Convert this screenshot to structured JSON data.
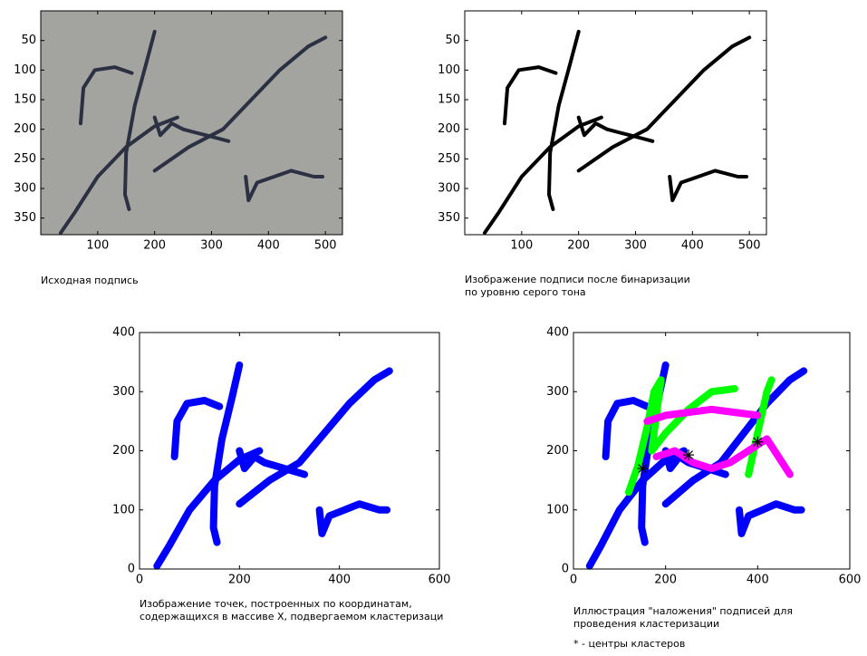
{
  "chart_data": [
    {
      "type": "image",
      "caption": [
        "Исходная  подпись"
      ],
      "background": "#a3a49f",
      "y_reversed": true,
      "xlim": [
        0,
        530
      ],
      "ylim": [
        0,
        378
      ],
      "xticks": [
        100,
        200,
        300,
        400,
        500
      ],
      "yticks": [
        50,
        100,
        150,
        200,
        250,
        300,
        350
      ],
      "series": [
        {
          "color": "#2b3042",
          "x": [
            70,
            75,
            95,
            130,
            160
          ],
          "y": [
            190,
            130,
            100,
            95,
            105
          ]
        },
        {
          "color": "#2b3042",
          "x": [
            200,
            185,
            165,
            150,
            148,
            155
          ],
          "y": [
            35,
            90,
            160,
            240,
            310,
            335
          ]
        },
        {
          "color": "#2b3042",
          "x": [
            35,
            60,
            100,
            150,
            200,
            240
          ],
          "y": [
            375,
            340,
            280,
            230,
            195,
            180
          ]
        },
        {
          "color": "#2b3042",
          "x": [
            200,
            210,
            230,
            250,
            270,
            290,
            310,
            330
          ],
          "y": [
            180,
            210,
            190,
            200,
            205,
            210,
            215,
            220
          ]
        },
        {
          "color": "#2b3042",
          "x": [
            200,
            260,
            320,
            370,
            420,
            470,
            500
          ],
          "y": [
            270,
            230,
            200,
            150,
            100,
            60,
            45
          ]
        },
        {
          "color": "#2b3042",
          "x": [
            360,
            365,
            380,
            410,
            440,
            480,
            495
          ],
          "y": [
            280,
            320,
            290,
            280,
            270,
            280,
            280
          ]
        }
      ]
    },
    {
      "type": "image",
      "caption": [
        "Изображение подписи после бинаризации",
        "по уровню серого тона"
      ],
      "background": "#ffffff",
      "y_reversed": true,
      "xlim": [
        0,
        530
      ],
      "ylim": [
        0,
        378
      ],
      "xticks": [
        100,
        200,
        300,
        400,
        500
      ],
      "yticks": [
        50,
        100,
        150,
        200,
        250,
        300,
        350
      ],
      "series": [
        {
          "color": "#000000",
          "x": [
            70,
            75,
            95,
            130,
            160
          ],
          "y": [
            190,
            130,
            100,
            95,
            105
          ]
        },
        {
          "color": "#000000",
          "x": [
            200,
            185,
            165,
            150,
            148,
            155
          ],
          "y": [
            35,
            90,
            160,
            240,
            310,
            335
          ]
        },
        {
          "color": "#000000",
          "x": [
            35,
            60,
            100,
            150,
            200,
            240
          ],
          "y": [
            375,
            340,
            280,
            230,
            195,
            180
          ]
        },
        {
          "color": "#000000",
          "x": [
            200,
            210,
            230,
            250,
            270,
            290,
            310,
            330
          ],
          "y": [
            180,
            210,
            190,
            200,
            205,
            210,
            215,
            220
          ]
        },
        {
          "color": "#000000",
          "x": [
            200,
            260,
            320,
            370,
            420,
            470,
            500
          ],
          "y": [
            270,
            230,
            200,
            150,
            100,
            60,
            45
          ]
        },
        {
          "color": "#000000",
          "x": [
            360,
            365,
            380,
            410,
            440,
            480,
            495
          ],
          "y": [
            280,
            320,
            290,
            280,
            270,
            280,
            280
          ]
        }
      ]
    },
    {
      "type": "scatter",
      "caption": [
        "Изображение точек, построенных по координатам,",
        "содержащихся в массиве X, подвергаемом кластеризаци"
      ],
      "background": "#ffffff",
      "xlim": [
        0,
        600
      ],
      "ylim": [
        0,
        400
      ],
      "xticks": [
        0,
        200,
        400,
        600
      ],
      "yticks": [
        0,
        100,
        200,
        300,
        400
      ],
      "series": [
        {
          "color": "#0000ff",
          "x": [
            70,
            75,
            95,
            130,
            160
          ],
          "y": [
            190,
            250,
            280,
            285,
            275
          ]
        },
        {
          "color": "#0000ff",
          "x": [
            200,
            185,
            165,
            150,
            148,
            155
          ],
          "y": [
            345,
            290,
            220,
            140,
            70,
            45
          ]
        },
        {
          "color": "#0000ff",
          "x": [
            35,
            60,
            100,
            150,
            200,
            240
          ],
          "y": [
            5,
            40,
            100,
            150,
            185,
            200
          ]
        },
        {
          "color": "#0000ff",
          "x": [
            200,
            210,
            230,
            250,
            270,
            290,
            310,
            330
          ],
          "y": [
            200,
            170,
            190,
            180,
            175,
            170,
            165,
            160
          ]
        },
        {
          "color": "#0000ff",
          "x": [
            200,
            260,
            320,
            370,
            420,
            470,
            500
          ],
          "y": [
            110,
            150,
            180,
            230,
            280,
            320,
            335
          ]
        },
        {
          "color": "#0000ff",
          "x": [
            360,
            365,
            380,
            410,
            440,
            480,
            495
          ],
          "y": [
            100,
            60,
            90,
            100,
            110,
            100,
            100
          ]
        }
      ]
    },
    {
      "type": "scatter",
      "caption": [
        "Иллюстрация \"наложения\" подписей для",
        "проведения кластеризации",
        "* - центры кластеров"
      ],
      "background": "#ffffff",
      "xlim": [
        0,
        600
      ],
      "ylim": [
        0,
        400
      ],
      "xticks": [
        0,
        200,
        400,
        600
      ],
      "yticks": [
        0,
        100,
        200,
        300,
        400
      ],
      "series": [
        {
          "color": "#0000ff",
          "x": [
            70,
            75,
            95,
            130,
            160
          ],
          "y": [
            190,
            250,
            280,
            285,
            275
          ]
        },
        {
          "color": "#0000ff",
          "x": [
            200,
            185,
            165,
            150,
            148,
            155
          ],
          "y": [
            345,
            290,
            220,
            140,
            70,
            45
          ]
        },
        {
          "color": "#0000ff",
          "x": [
            35,
            60,
            100,
            150,
            200,
            240
          ],
          "y": [
            5,
            40,
            100,
            150,
            185,
            200
          ]
        },
        {
          "color": "#0000ff",
          "x": [
            200,
            210,
            230,
            250,
            270,
            290,
            310,
            330
          ],
          "y": [
            200,
            170,
            190,
            180,
            175,
            170,
            165,
            160
          ]
        },
        {
          "color": "#0000ff",
          "x": [
            200,
            260,
            320,
            370,
            420,
            470,
            500
          ],
          "y": [
            110,
            150,
            180,
            230,
            280,
            320,
            335
          ]
        },
        {
          "color": "#0000ff",
          "x": [
            360,
            365,
            380,
            410,
            440,
            480,
            495
          ],
          "y": [
            100,
            60,
            90,
            100,
            110,
            100,
            100
          ]
        },
        {
          "color": "#00ff00",
          "x": [
            120,
            140,
            160,
            175,
            190,
            180,
            170,
            200,
            250,
            300,
            350
          ],
          "y": [
            130,
            175,
            240,
            300,
            320,
            260,
            200,
            230,
            270,
            300,
            305
          ]
        },
        {
          "color": "#00ff00",
          "x": [
            380,
            400,
            420,
            430
          ],
          "y": [
            160,
            230,
            300,
            320
          ]
        },
        {
          "color": "#ff00ff",
          "x": [
            160,
            200,
            250,
            300,
            350,
            400
          ],
          "y": [
            250,
            260,
            265,
            270,
            265,
            260
          ]
        },
        {
          "color": "#ff00ff",
          "x": [
            180,
            220,
            260,
            300,
            340,
            380,
            420,
            470
          ],
          "y": [
            190,
            200,
            180,
            170,
            180,
            200,
            220,
            160
          ]
        }
      ],
      "centers": {
        "color": "#000000",
        "x": [
          150,
          250,
          400
        ],
        "y": [
          170,
          193,
          215
        ]
      }
    }
  ]
}
